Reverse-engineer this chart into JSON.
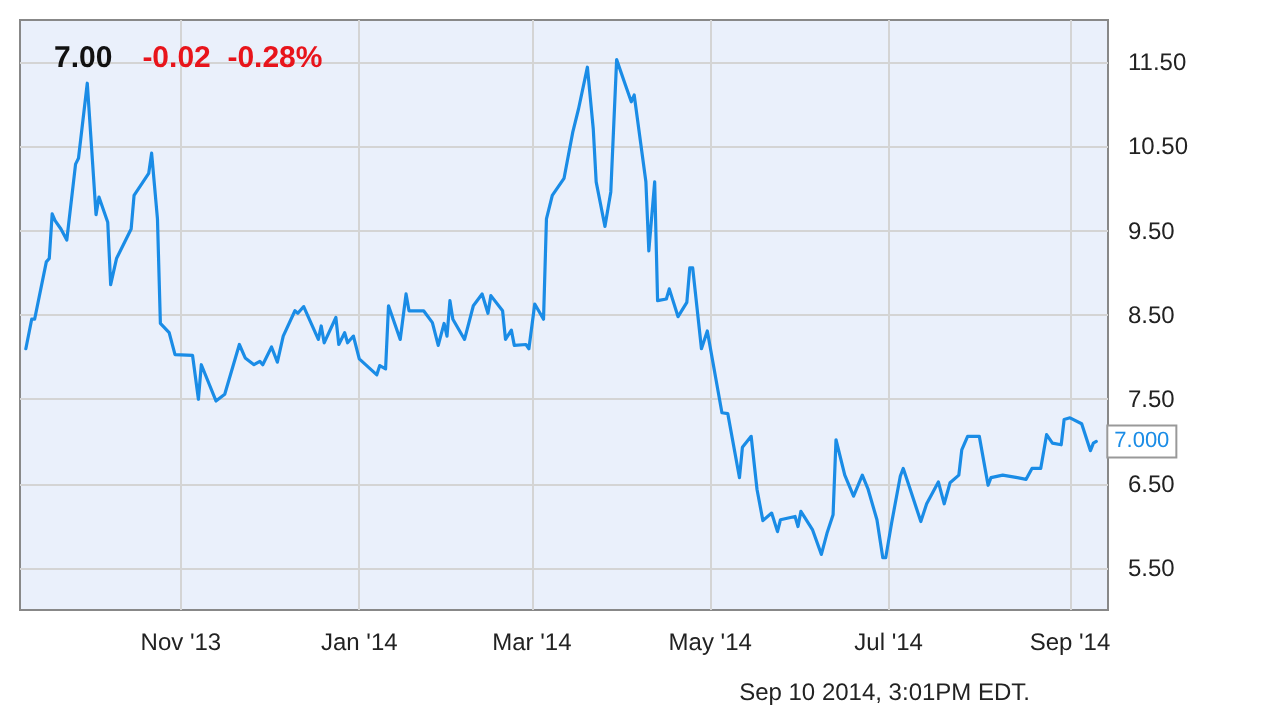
{
  "chart_data": {
    "type": "line",
    "title": "7.00",
    "subtitle": "-0.02  -0.28%",
    "x": [
      "2013-09-09",
      "2013-09-11",
      "2013-09-12",
      "2013-09-16",
      "2013-09-17",
      "2013-09-18",
      "2013-09-19",
      "2013-09-21",
      "2013-09-23",
      "2013-09-26",
      "2013-09-27",
      "2013-09-30",
      "2013-10-03",
      "2013-10-04",
      "2013-10-07",
      "2013-10-08",
      "2013-10-10",
      "2013-10-15",
      "2013-10-16",
      "2013-10-21",
      "2013-10-22",
      "2013-10-24",
      "2013-10-25",
      "2013-10-28",
      "2013-10-30",
      "2013-11-05",
      "2013-11-07",
      "2013-11-08",
      "2013-11-13",
      "2013-11-16",
      "2013-11-21",
      "2013-11-23",
      "2013-11-26",
      "2013-11-28",
      "2013-11-29",
      "2013-12-02",
      "2013-12-04",
      "2013-12-06",
      "2013-12-10",
      "2013-12-11",
      "2013-12-13",
      "2013-12-18",
      "2013-12-19",
      "2013-12-20",
      "2013-12-24",
      "2013-12-25",
      "2013-12-27",
      "2013-12-28",
      "2013-12-30",
      "2014-01-01",
      "2014-01-07",
      "2014-01-08",
      "2014-01-10",
      "2014-01-11",
      "2014-01-15",
      "2014-01-17",
      "2014-01-18",
      "2014-01-23",
      "2014-01-26",
      "2014-01-28",
      "2014-01-30",
      "2014-01-31",
      "2014-02-01",
      "2014-02-02",
      "2014-02-06",
      "2014-02-09",
      "2014-02-12",
      "2014-02-14",
      "2014-02-15",
      "2014-02-19",
      "2014-02-20",
      "2014-02-22",
      "2014-02-23",
      "2014-02-27",
      "2014-02-28",
      "2014-03-02",
      "2014-03-05",
      "2014-03-06",
      "2014-03-08",
      "2014-03-12",
      "2014-03-15",
      "2014-03-17",
      "2014-03-20",
      "2014-03-22",
      "2014-03-23",
      "2014-03-26",
      "2014-03-28",
      "2014-03-30",
      "2014-04-02",
      "2014-04-04",
      "2014-04-05",
      "2014-04-09",
      "2014-04-10",
      "2014-04-12",
      "2014-04-13",
      "2014-04-16",
      "2014-04-17",
      "2014-04-20",
      "2014-04-23",
      "2014-04-24",
      "2014-04-25",
      "2014-04-28",
      "2014-04-30",
      "2014-05-05",
      "2014-05-07",
      "2014-05-11",
      "2014-05-12",
      "2014-05-15",
      "2014-05-17",
      "2014-05-19",
      "2014-05-22",
      "2014-05-24",
      "2014-05-25",
      "2014-05-30",
      "2014-05-31",
      "2014-06-01",
      "2014-06-05",
      "2014-06-08",
      "2014-06-10",
      "2014-06-12",
      "2014-06-13",
      "2014-06-16",
      "2014-06-19",
      "2014-06-22",
      "2014-06-24",
      "2014-06-27",
      "2014-06-29",
      "2014-06-30",
      "2014-07-02",
      "2014-07-05",
      "2014-07-06",
      "2014-07-08",
      "2014-07-12",
      "2014-07-14",
      "2014-07-18",
      "2014-07-20",
      "2014-07-22",
      "2014-07-25",
      "2014-07-26",
      "2014-07-28",
      "2014-08-01",
      "2014-08-04",
      "2014-08-05",
      "2014-08-09",
      "2014-08-14",
      "2014-08-17",
      "2014-08-19",
      "2014-08-22",
      "2014-08-24",
      "2014-08-26",
      "2014-08-29",
      "2014-08-30",
      "2014-09-01",
      "2014-09-05",
      "2014-09-08",
      "2014-09-09",
      "2014-09-10"
    ],
    "series": [
      {
        "color": "#1a8ce6",
        "values": [
          8.1,
          8.45,
          8.45,
          9.13,
          9.17,
          9.7,
          9.62,
          9.52,
          9.39,
          10.29,
          10.36,
          11.25,
          9.69,
          9.9,
          9.6,
          8.86,
          9.17,
          9.52,
          9.92,
          10.18,
          10.42,
          9.64,
          8.4,
          8.29,
          8.03,
          8.02,
          7.5,
          7.91,
          7.48,
          7.56,
          8.15,
          7.99,
          7.91,
          7.95,
          7.91,
          8.12,
          7.94,
          8.25,
          8.55,
          8.52,
          8.6,
          8.21,
          8.37,
          8.17,
          8.47,
          8.15,
          8.29,
          8.17,
          8.25,
          7.98,
          7.79,
          7.9,
          7.86,
          8.61,
          8.21,
          8.75,
          8.55,
          8.55,
          8.41,
          8.14,
          8.4,
          8.25,
          8.67,
          8.45,
          8.21,
          8.61,
          8.75,
          8.52,
          8.73,
          8.55,
          8.21,
          8.32,
          8.14,
          8.15,
          8.1,
          8.63,
          8.45,
          9.64,
          9.92,
          10.12,
          10.67,
          10.95,
          11.44,
          10.71,
          10.08,
          9.55,
          9.96,
          11.53,
          11.23,
          11.03,
          11.11,
          10.08,
          9.26,
          10.08,
          8.67,
          8.69,
          8.81,
          8.48,
          8.65,
          9.06,
          9.06,
          8.1,
          8.31,
          7.34,
          7.33,
          6.57,
          6.93,
          7.06,
          6.43,
          6.06,
          6.15,
          5.93,
          6.07,
          6.11,
          5.99,
          6.17,
          5.95,
          5.66,
          5.92,
          6.13,
          7.02,
          6.6,
          6.35,
          6.6,
          6.43,
          6.07,
          5.62,
          5.62,
          6.03,
          6.59,
          6.68,
          6.47,
          6.05,
          6.26,
          6.52,
          6.26,
          6.51,
          6.6,
          6.9,
          7.06,
          7.06,
          6.48,
          6.57,
          6.6,
          6.57,
          6.55,
          6.68,
          6.68,
          7.08,
          6.98,
          6.96,
          7.26,
          7.28,
          7.21,
          6.89,
          6.98,
          7.0
        ]
      }
    ],
    "xlim": [
      "2013-09-07",
      "2014-09-14"
    ],
    "xticks": [
      {
        "value": "2013-11-01",
        "label": "Nov '13"
      },
      {
        "value": "2014-01-01",
        "label": "Jan '14"
      },
      {
        "value": "2014-03-01",
        "label": "Mar '14"
      },
      {
        "value": "2014-05-01",
        "label": "May '14"
      },
      {
        "value": "2014-07-01",
        "label": "Jul '14"
      },
      {
        "value": "2014-09-01",
        "label": "Sep '14"
      }
    ],
    "ylim": [
      5.0,
      12.0
    ],
    "yticks": [
      {
        "value": 5.5,
        "label": "5.50"
      },
      {
        "value": 6.5,
        "label": "6.50"
      },
      {
        "value": 7.5,
        "label": "7.50"
      },
      {
        "value": 8.5,
        "label": "8.50"
      },
      {
        "value": 9.5,
        "label": "9.50"
      },
      {
        "value": 10.5,
        "label": "10.50"
      },
      {
        "value": 11.5,
        "label": "11.50"
      }
    ],
    "grid": true,
    "marker": "none",
    "line_style": "solid",
    "annotations": [
      {
        "text": "7.000",
        "x": "2014-09-10",
        "y": 7.0
      },
      "Sep 10 2014, 3:01PM EDT."
    ]
  }
}
